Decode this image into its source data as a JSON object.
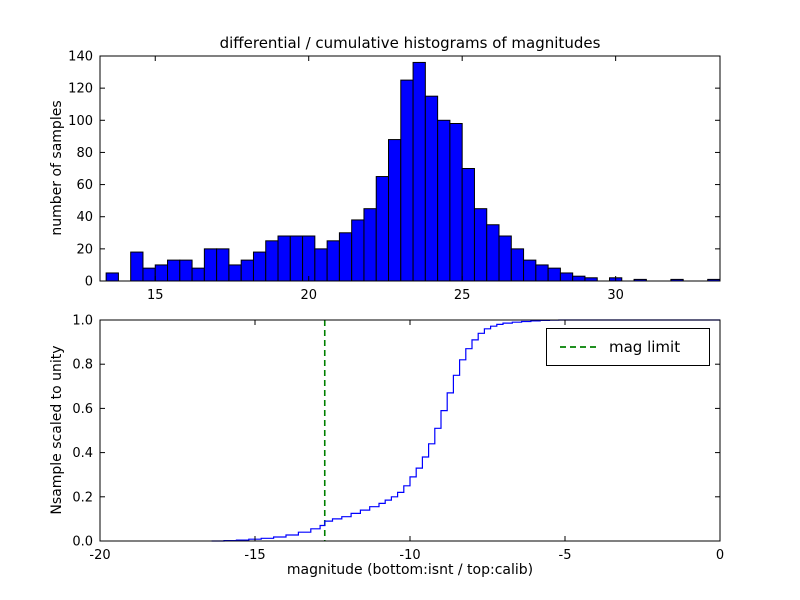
{
  "chart_data": [
    {
      "id": "differential-histogram",
      "type": "bar",
      "title": "differential / cumulative histograms of magnitudes",
      "ylabel": "number of samples",
      "xlabel": "",
      "xlim": [
        13.2,
        33.4
      ],
      "ylim": [
        0,
        140
      ],
      "xticks": [
        "15",
        "20",
        "25",
        "30"
      ],
      "yticks": [
        "0",
        "20",
        "40",
        "60",
        "80",
        "100",
        "120",
        "140"
      ],
      "grid": false,
      "bin_start": 13.4,
      "bin_width": 0.4,
      "counts": [
        5,
        0,
        18,
        8,
        10,
        13,
        13,
        8,
        20,
        20,
        10,
        13,
        18,
        25,
        28,
        28,
        28,
        20,
        25,
        30,
        38,
        45,
        65,
        88,
        125,
        136,
        115,
        100,
        98,
        70,
        45,
        35,
        28,
        20,
        13,
        10,
        8,
        5,
        3,
        2,
        0,
        2,
        0,
        1,
        0,
        0,
        1,
        0,
        0,
        1
      ],
      "bar_color": "#0000ff",
      "bar_edge_color": "#000000"
    },
    {
      "id": "cumulative-histogram",
      "type": "line",
      "line_style": "step",
      "ylabel": "Nsample scaled to unity",
      "xlabel": "magnitude (bottom:isnt / top:calib)",
      "xlim": [
        -20,
        0
      ],
      "ylim": [
        0.0,
        1.0
      ],
      "xticks": [
        "-20",
        "-15",
        "-10",
        "-5",
        "0"
      ],
      "yticks": [
        "0.0",
        "0.2",
        "0.4",
        "0.6",
        "0.8",
        "1.0"
      ],
      "grid": false,
      "line_color": "#0000ff",
      "points": [
        [
          -16.4,
          0.0
        ],
        [
          -16.0,
          0.002
        ],
        [
          -15.6,
          0.004
        ],
        [
          -15.2,
          0.008
        ],
        [
          -14.8,
          0.012
        ],
        [
          -14.4,
          0.018
        ],
        [
          -14.0,
          0.027
        ],
        [
          -13.6,
          0.04
        ],
        [
          -13.2,
          0.055
        ],
        [
          -12.9,
          0.07
        ],
        [
          -12.75,
          0.09
        ],
        [
          -12.5,
          0.1
        ],
        [
          -12.2,
          0.11
        ],
        [
          -11.9,
          0.125
        ],
        [
          -11.6,
          0.14
        ],
        [
          -11.3,
          0.155
        ],
        [
          -11.0,
          0.17
        ],
        [
          -10.8,
          0.185
        ],
        [
          -10.6,
          0.2
        ],
        [
          -10.4,
          0.22
        ],
        [
          -10.2,
          0.25
        ],
        [
          -10.0,
          0.29
        ],
        [
          -9.8,
          0.33
        ],
        [
          -9.6,
          0.38
        ],
        [
          -9.4,
          0.44
        ],
        [
          -9.2,
          0.51
        ],
        [
          -9.0,
          0.59
        ],
        [
          -8.8,
          0.67
        ],
        [
          -8.6,
          0.75
        ],
        [
          -8.4,
          0.82
        ],
        [
          -8.2,
          0.87
        ],
        [
          -8.0,
          0.91
        ],
        [
          -7.8,
          0.94
        ],
        [
          -7.6,
          0.96
        ],
        [
          -7.4,
          0.972
        ],
        [
          -7.2,
          0.98
        ],
        [
          -7.0,
          0.986
        ],
        [
          -6.7,
          0.99
        ],
        [
          -6.4,
          0.993
        ],
        [
          -6.1,
          0.996
        ],
        [
          -5.8,
          0.998
        ],
        [
          -5.5,
          0.999
        ],
        [
          -5.2,
          1.0
        ],
        [
          0.0,
          1.0
        ]
      ],
      "vline": {
        "x": -12.75,
        "color": "#008000",
        "style": "dashed",
        "label": "mag limit"
      },
      "legend": {
        "position": "upper right",
        "entries": [
          {
            "label": "mag limit",
            "color": "#008000",
            "linestyle": "dashed"
          }
        ]
      }
    }
  ]
}
